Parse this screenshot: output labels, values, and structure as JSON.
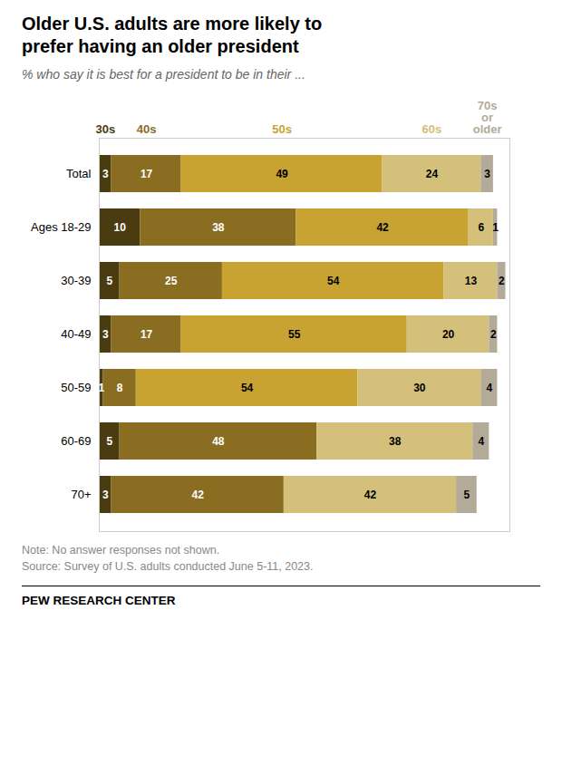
{
  "chart_data": {
    "type": "bar",
    "orientation": "horizontal",
    "stacked": true,
    "title": "Older U.S. adults are more likely to\nprefer having an older president",
    "subtitle": "% who say it is best for a president to be in their ...",
    "categories": [
      "Total",
      "Ages 18-29",
      "30-39",
      "40-49",
      "50-59",
      "60-69",
      "70+"
    ],
    "series": [
      {
        "name": "30s",
        "color": "#4a3b10",
        "values": [
          3,
          10,
          5,
          3,
          1,
          5,
          3
        ]
      },
      {
        "name": "40s",
        "color": "#8b6d22",
        "values": [
          17,
          38,
          25,
          17,
          8,
          48,
          42
        ]
      },
      {
        "name": "50s",
        "color": "#c8a332",
        "values": [
          49,
          42,
          54,
          55,
          54,
          0,
          0
        ]
      },
      {
        "name": "60s",
        "color": "#d4c07a",
        "values": [
          24,
          6,
          13,
          20,
          30,
          38,
          42
        ]
      },
      {
        "name": "70s or older",
        "color": "#b3ab97",
        "values": [
          3,
          1,
          2,
          2,
          4,
          4,
          5
        ]
      }
    ],
    "xlim": [
      0,
      100
    ],
    "data_labels": true,
    "tick_labels": "y",
    "annotations": [
      "Note: No answer responses not shown.",
      "Source: Survey of U.S. adults conducted June 5-11, 2023.",
      "PEW RESEARCH CENTER"
    ]
  }
}
